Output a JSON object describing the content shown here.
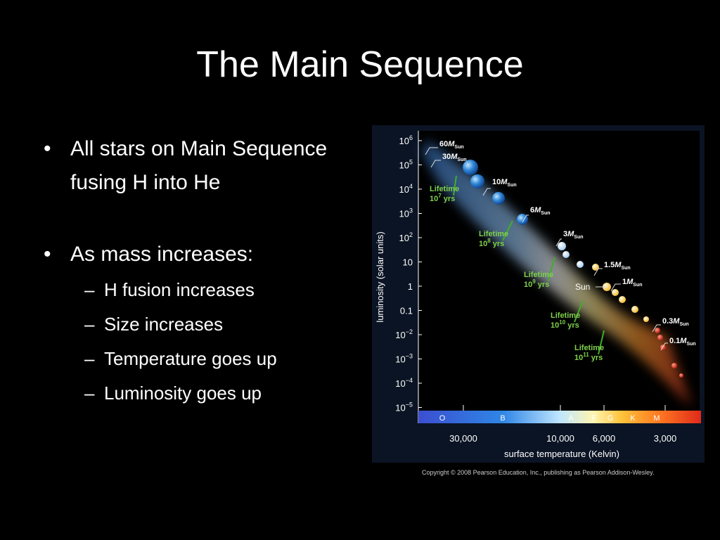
{
  "slide": {
    "title": "The Main Sequence",
    "bullets": [
      {
        "text": "All stars on Main Sequence fusing H into He",
        "subs": []
      },
      {
        "text": "As mass increases:",
        "subs": [
          "H fusion increases",
          "Size increases",
          "Temperature goes up",
          "Luminosity goes up"
        ]
      }
    ],
    "bullet_glyph": "•",
    "dash_glyph": "–"
  },
  "figure": {
    "y_axis_label": "luminosity (solar units)",
    "x_axis_label": "surface temperature (Kelvin)",
    "y_ticks": [
      {
        "base": "10",
        "exp": "6"
      },
      {
        "base": "10",
        "exp": "5"
      },
      {
        "base": "10",
        "exp": "4"
      },
      {
        "base": "10",
        "exp": "3"
      },
      {
        "base": "10",
        "exp": "2"
      },
      {
        "base": "10",
        "exp": ""
      },
      {
        "base": "1",
        "exp": ""
      },
      {
        "base": "0.1",
        "exp": ""
      },
      {
        "base": "10",
        "exp": "−2"
      },
      {
        "base": "10",
        "exp": "−3"
      },
      {
        "base": "10",
        "exp": "−4"
      },
      {
        "base": "10",
        "exp": "−5"
      }
    ],
    "x_ticks": [
      "30,000",
      "10,000",
      "6,000",
      "3,000"
    ],
    "spectral_classes": [
      "O",
      "B",
      "A",
      "F",
      "G",
      "K",
      "M"
    ],
    "mass_labels": [
      {
        "num": "60",
        "unit": "M",
        "sub": "Sun"
      },
      {
        "num": "30",
        "unit": "M",
        "sub": "Sun"
      },
      {
        "num": "10",
        "unit": "M",
        "sub": "Sun"
      },
      {
        "num": "6",
        "unit": "M",
        "sub": "Sun"
      },
      {
        "num": "3",
        "unit": "M",
        "sub": "Sun"
      },
      {
        "num": "1.5",
        "unit": "M",
        "sub": "Sun"
      },
      {
        "num": "1",
        "unit": "M",
        "sub": "Sun"
      },
      {
        "num": "0.3",
        "unit": "M",
        "sub": "Sun"
      },
      {
        "num": "0.1",
        "unit": "M",
        "sub": "Sun"
      }
    ],
    "sun_label": "Sun",
    "lifetimes": [
      {
        "word": "Lifetime",
        "base": "10",
        "exp": "7",
        "unit": "yrs"
      },
      {
        "word": "Lifetime",
        "base": "10",
        "exp": "8",
        "unit": "yrs"
      },
      {
        "word": "Lifetime",
        "base": "10",
        "exp": "9",
        "unit": "yrs"
      },
      {
        "word": "Lifetime",
        "base": "10",
        "exp": "10",
        "unit": "yrs"
      },
      {
        "word": "Lifetime",
        "base": "10",
        "exp": "11",
        "unit": "yrs"
      }
    ],
    "colors": {
      "background": "#000000",
      "panel": "#0b1424",
      "lifetime_text": "#7fd14b",
      "lifetime_line": "#3fae2a",
      "hot_star": "#2f86d6",
      "cool_star": "#d8361e"
    }
  },
  "copyright": "Copyright © 2008 Pearson Education, Inc., publishing as Pearson Addison-Wesley."
}
